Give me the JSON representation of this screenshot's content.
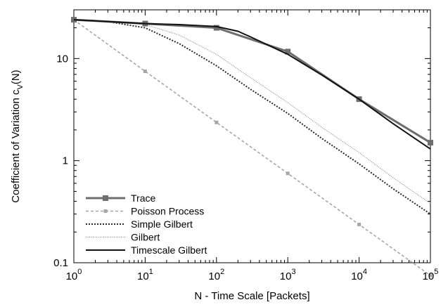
{
  "chart_data": {
    "type": "line",
    "xlabel": "N - Time Scale [Packets]",
    "ylabel_main": "Coefficient of Variation c",
    "ylabel_sub": "V",
    "ylabel_tail": "(N)",
    "xscale": "log",
    "yscale": "log",
    "xlim": [
      1,
      100000
    ],
    "ylim": [
      0.1,
      30
    ],
    "grid": false,
    "legend_position": "bottom-left",
    "x_ticks": [
      {
        "base": "10",
        "exp": "0"
      },
      {
        "base": "10",
        "exp": "1"
      },
      {
        "base": "10",
        "exp": "2"
      },
      {
        "base": "10",
        "exp": "3"
      },
      {
        "base": "10",
        "exp": "4"
      },
      {
        "base": "10",
        "exp": "5"
      }
    ],
    "y_ticks": [
      "0.1",
      "1",
      "10"
    ],
    "series": [
      {
        "name": "Trace",
        "color": "#6e6e6e",
        "style": "solid-thick",
        "marker": "square",
        "x": [
          1,
          10,
          100,
          1000,
          10000,
          100000
        ],
        "y": [
          24,
          22,
          20,
          11.7,
          4.0,
          1.5
        ]
      },
      {
        "name": "Poisson Process",
        "color": "#a6a6a6",
        "style": "dashed",
        "marker": "small-square",
        "x": [
          1,
          10,
          100,
          1000,
          10000,
          100000
        ],
        "y": [
          24,
          7.5,
          2.37,
          0.75,
          0.237,
          0.075
        ]
      },
      {
        "name": "Simple Gilbert",
        "color": "#2a2a2a",
        "style": "dotted",
        "marker": "none",
        "x": [
          1,
          3,
          10,
          30,
          100,
          300,
          1000,
          3000,
          10000,
          30000,
          100000
        ],
        "y": [
          24,
          23,
          20,
          14,
          8.5,
          5.0,
          2.9,
          1.65,
          0.93,
          0.53,
          0.3
        ]
      },
      {
        "name": "Gilbert",
        "color": "#8c8c8c",
        "style": "fine-dotted",
        "marker": "none",
        "x": [
          1,
          3,
          10,
          30,
          100,
          300,
          1000,
          3000,
          10000,
          30000,
          100000
        ],
        "y": [
          24,
          23.4,
          21.5,
          17,
          11,
          6.5,
          3.7,
          2.12,
          1.2,
          0.68,
          0.38
        ]
      },
      {
        "name": "Timescale Gilbert",
        "color": "#111111",
        "style": "solid",
        "marker": "none",
        "x": [
          1,
          3,
          10,
          30,
          100,
          200,
          300,
          500,
          1000,
          3000,
          10000,
          30000,
          100000
        ],
        "y": [
          24,
          23,
          22,
          21.5,
          20.6,
          18.5,
          16.3,
          13.8,
          11,
          6.9,
          4.0,
          2.3,
          1.3
        ]
      }
    ]
  }
}
